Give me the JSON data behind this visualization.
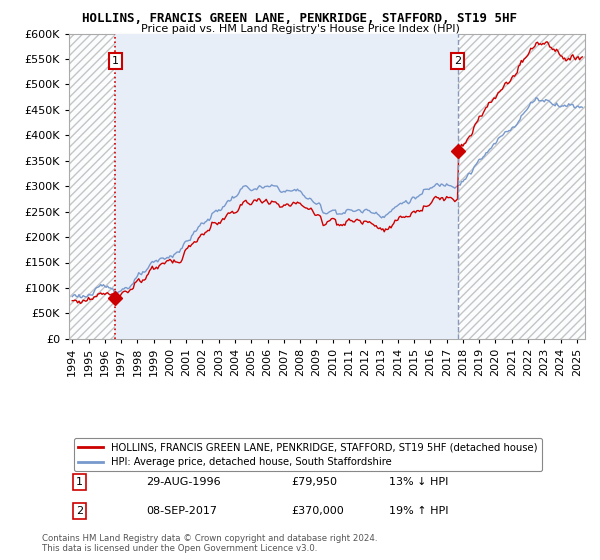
{
  "title": "HOLLINS, FRANCIS GREEN LANE, PENKRIDGE, STAFFORD, ST19 5HF",
  "subtitle": "Price paid vs. HM Land Registry's House Price Index (HPI)",
  "legend_line1": "HOLLINS, FRANCIS GREEN LANE, PENKRIDGE, STAFFORD, ST19 5HF (detached house)",
  "legend_line2": "HPI: Average price, detached house, South Staffordshire",
  "sale1_label": "1",
  "sale1_date": "29-AUG-1996",
  "sale1_price": "£79,950",
  "sale1_hpi": "13% ↓ HPI",
  "sale2_label": "2",
  "sale2_date": "08-SEP-2017",
  "sale2_price": "£370,000",
  "sale2_hpi": "19% ↑ HPI",
  "footnote": "Contains HM Land Registry data © Crown copyright and database right 2024.\nThis data is licensed under the Open Government Licence v3.0.",
  "red_color": "#cc0000",
  "blue_color": "#7799cc",
  "hatch_bg": "#e8e8e8",
  "plot_bg": "#e8eef8",
  "ylim_max": 600000,
  "sale1_year": 1996.65,
  "sale2_year": 2017.68,
  "xmin": 1993.8,
  "xmax": 2025.5
}
